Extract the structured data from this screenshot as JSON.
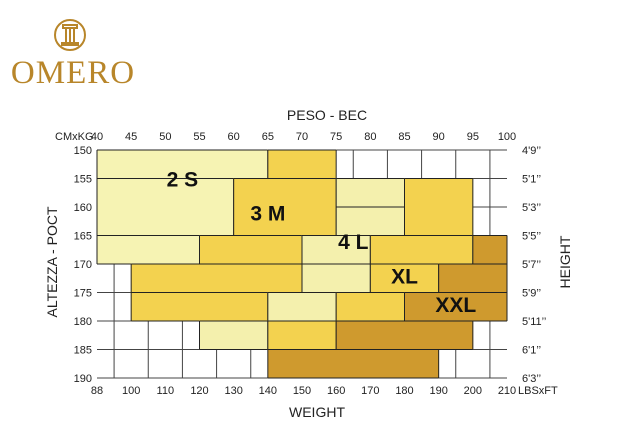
{
  "brand": {
    "name": "OMERO",
    "color": "#b8862a"
  },
  "chart_data": {
    "type": "table",
    "title": "PESO - BEC",
    "xlabel": "WEIGHT",
    "ylabel": "ALTEZZA - POCT",
    "ylabel_right": "HEIGHT",
    "top_axis": {
      "unit": "CMxKG",
      "ticks": [
        40,
        45,
        50,
        55,
        60,
        65,
        70,
        75,
        80,
        85,
        90,
        95,
        100
      ]
    },
    "bottom_axis": {
      "unit": "LBSxFT",
      "ticks": [
        88,
        100,
        110,
        120,
        130,
        140,
        150,
        160,
        170,
        180,
        190,
        200,
        210
      ]
    },
    "left_axis": {
      "ticks": [
        150,
        155,
        160,
        165,
        170,
        175,
        180,
        185,
        190
      ]
    },
    "right_axis": {
      "ticks": [
        "4'9’’",
        "5'1’’",
        "5'3’’",
        "5'5’’",
        "5'7’’",
        "5'9’’",
        "5'11’’",
        "6'1’’",
        "6'3’’"
      ]
    },
    "xlim": [
      40,
      100
    ],
    "ylim": [
      150,
      190
    ],
    "sizes": [
      {
        "name": "2 S",
        "color": "#f6f3b3",
        "label_at": {
          "kg": 52.5,
          "cm": 155
        },
        "rows": [
          {
            "cm": [
              150,
              155
            ],
            "kg": [
              40,
              65
            ]
          },
          {
            "cm": [
              155,
              165
            ],
            "kg": [
              40,
              60
            ]
          },
          {
            "cm": [
              165,
              170
            ],
            "kg": [
              40,
              55
            ]
          }
        ]
      },
      {
        "name": "3 M",
        "color": "#f3d24f",
        "label_at": {
          "kg": 65,
          "cm": 161
        },
        "rows": [
          {
            "cm": [
              150,
              155
            ],
            "kg": [
              65,
              75
            ]
          },
          {
            "cm": [
              155,
              165
            ],
            "kg": [
              60,
              75
            ]
          },
          {
            "cm": [
              165,
              170
            ],
            "kg": [
              55,
              70
            ]
          },
          {
            "cm": [
              170,
              175
            ],
            "kg": [
              45,
              70
            ]
          },
          {
            "cm": [
              175,
              180
            ],
            "kg": [
              45,
              65
            ]
          }
        ]
      },
      {
        "name": "4 L",
        "color": "#f4f0ad",
        "label_at": {
          "kg": 77.5,
          "cm": 166
        },
        "rows": [
          {
            "cm": [
              155,
              160
            ],
            "kg": [
              75,
              85
            ]
          },
          {
            "cm": [
              160,
              165
            ],
            "kg": [
              75,
              85
            ]
          },
          {
            "cm": [
              165,
              170
            ],
            "kg": [
              70,
              80
            ]
          },
          {
            "cm": [
              170,
              175
            ],
            "kg": [
              70,
              80
            ]
          },
          {
            "cm": [
              175,
              180
            ],
            "kg": [
              65,
              75
            ]
          },
          {
            "cm": [
              180,
              185
            ],
            "kg": [
              55,
              65
            ]
          }
        ]
      },
      {
        "name": "XL",
        "color": "#f3d24f",
        "label_at": {
          "kg": 85,
          "cm": 172
        },
        "rows": [
          {
            "cm": [
              155,
              165
            ],
            "kg": [
              85,
              95
            ]
          },
          {
            "cm": [
              165,
              170
            ],
            "kg": [
              80,
              95
            ]
          },
          {
            "cm": [
              170,
              175
            ],
            "kg": [
              80,
              90
            ]
          },
          {
            "cm": [
              175,
              180
            ],
            "kg": [
              75,
              85
            ]
          },
          {
            "cm": [
              180,
              185
            ],
            "kg": [
              65,
              75
            ]
          }
        ]
      },
      {
        "name": "XXL",
        "color": "#cf9a2e",
        "label_at": {
          "kg": 92.5,
          "cm": 177
        },
        "rows": [
          {
            "cm": [
              165,
              170
            ],
            "kg": [
              95,
              100
            ]
          },
          {
            "cm": [
              170,
              175
            ],
            "kg": [
              90,
              100
            ]
          },
          {
            "cm": [
              175,
              180
            ],
            "kg": [
              85,
              100
            ]
          },
          {
            "cm": [
              180,
              185
            ],
            "kg": [
              75,
              95
            ]
          },
          {
            "cm": [
              185,
              190
            ],
            "kg": [
              65,
              90
            ]
          }
        ]
      }
    ]
  }
}
